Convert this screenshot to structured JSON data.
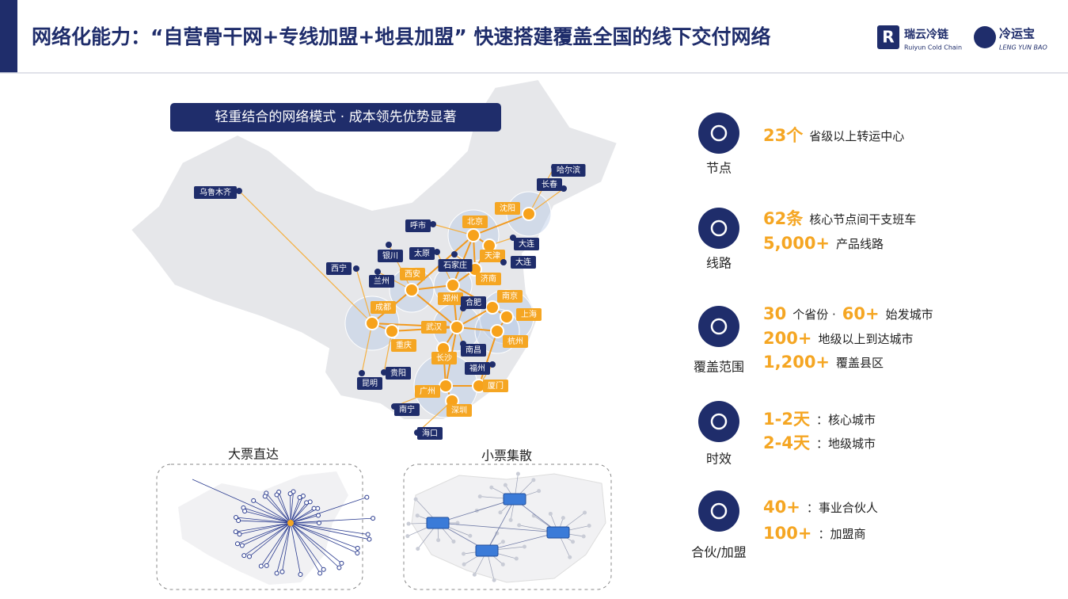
{
  "header": {
    "title": "网络化能力：“自营骨干网+专线加盟+地县加盟” 快速搭建覆盖全国的线下交付网络",
    "logos": [
      {
        "name": "瑞云冷链",
        "subtitle": "Ruiyun Cold Chain"
      },
      {
        "name": "冷运宝",
        "subtitle": "LENG YUN BAO"
      }
    ]
  },
  "map": {
    "banner": "轻重结合的网络模式 · 成本领先优势显著",
    "hubs": [
      "北京",
      "沈阳",
      "天津",
      "济南",
      "西安",
      "郑州",
      "成都",
      "武汉",
      "重庆",
      "长沙",
      "南京",
      "上海",
      "杭州",
      "广州",
      "深圳",
      "厦门"
    ],
    "cities": [
      "哈尔滨",
      "长春",
      "大连",
      "大连",
      "呼市",
      "银川",
      "太原",
      "石家庄",
      "西宁",
      "兰州",
      "乌鲁木齐",
      "合肥",
      "南昌",
      "福州",
      "贵阳",
      "昆明",
      "南宁",
      "海口"
    ],
    "insets": [
      "大票直达",
      "小票集散"
    ]
  },
  "metrics": [
    {
      "label": "节点",
      "lines": [
        [
          {
            "em": "23个"
          },
          {
            "text": "省级以上转运中心"
          }
        ]
      ]
    },
    {
      "label": "线路",
      "lines": [
        [
          {
            "em": "62条"
          },
          {
            "text": "核心节点间干支班车"
          }
        ],
        [
          {
            "em": "5,000+"
          },
          {
            "text": "产品线路"
          }
        ]
      ]
    },
    {
      "label": "覆盖范围",
      "lines": [
        [
          {
            "em": "30"
          },
          {
            "text": "个省份 ·"
          },
          {
            "em": "60+"
          },
          {
            "text": "始发城市"
          }
        ],
        [
          {
            "em": "200+"
          },
          {
            "text": "地级以上到达城市"
          }
        ],
        [
          {
            "em": "1,200+"
          },
          {
            "text": "覆盖县区"
          }
        ]
      ]
    },
    {
      "label": "时效",
      "lines": [
        [
          {
            "em": "1-2天"
          },
          {
            "text": "：核心城市"
          }
        ],
        [
          {
            "em": "2-4天"
          },
          {
            "text": "：地级城市"
          }
        ]
      ]
    },
    {
      "label": "合伙/加盟",
      "lines": [
        [
          {
            "em": "40+"
          },
          {
            "text": "：事业合伙人"
          }
        ],
        [
          {
            "em": "100+"
          },
          {
            "text": "：加盟商"
          }
        ]
      ]
    }
  ]
}
